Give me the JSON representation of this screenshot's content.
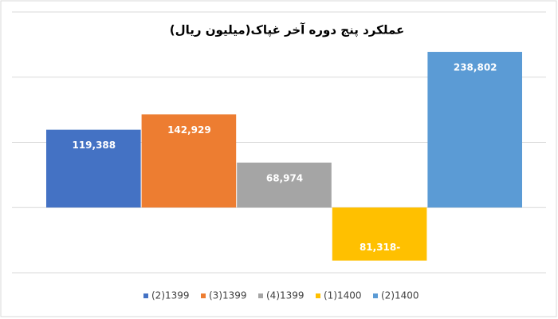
{
  "chart_data": {
    "type": "bar",
    "title": "عملکرد پنج دوره آخر غپاک(میلیون ریال)",
    "categories": [
      null
    ],
    "series": [
      {
        "name": "(2)1399",
        "color": "#4472c4",
        "values": [
          119388
        ],
        "value_labels": [
          "119,388"
        ]
      },
      {
        "name": "(3)1399",
        "color": "#ed7d31",
        "values": [
          142929
        ],
        "value_labels": [
          "142,929"
        ]
      },
      {
        "name": "(4)1399",
        "color": "#a5a5a5",
        "values": [
          68974
        ],
        "value_labels": [
          "68,974"
        ]
      },
      {
        "name": "(1)1400",
        "color": "#ffc000",
        "values": [
          -81318
        ],
        "value_labels": [
          "81,318-"
        ]
      },
      {
        "name": "(2)1400",
        "color": "#5b9bd5",
        "values": [
          238802
        ],
        "value_labels": [
          "238,802"
        ]
      }
    ],
    "ylim": [
      -100000,
      300000
    ],
    "yticks": [
      -100000,
      0,
      100000,
      200000,
      300000
    ],
    "grid": true,
    "legend": "bottom"
  }
}
